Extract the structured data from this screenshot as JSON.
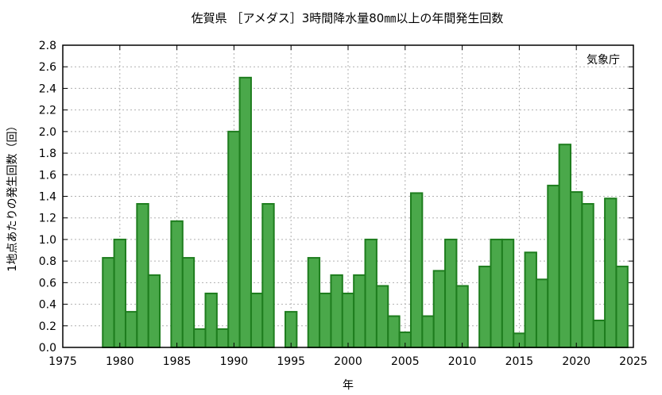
{
  "chart_data": {
    "type": "bar",
    "title": "佐賀県 ［アメダス］3時間降水量80㎜以上の年間発生回数",
    "xlabel": "年",
    "ylabel": "1地点あたりの発生回数（回）",
    "annotation": "気象庁",
    "xlim": [
      1975,
      2025
    ],
    "ylim": [
      0,
      2.8
    ],
    "x_ticks": [
      "1975",
      "1980",
      "1985",
      "1990",
      "1995",
      "2000",
      "2005",
      "2010",
      "2015",
      "2020",
      "2025"
    ],
    "y_ticks": [
      "0.0",
      "0.2",
      "0.4",
      "0.6",
      "0.8",
      "1.0",
      "1.2",
      "1.4",
      "1.6",
      "1.8",
      "2.0",
      "2.2",
      "2.4",
      "2.6",
      "2.8"
    ],
    "grid": true,
    "bar_fill": "#4aa84a",
    "bar_stroke": "#1e7d1e",
    "x": [
      1979,
      1980,
      1981,
      1982,
      1983,
      1984,
      1985,
      1986,
      1987,
      1988,
      1989,
      1990,
      1991,
      1992,
      1993,
      1994,
      1995,
      1996,
      1997,
      1998,
      1999,
      2000,
      2001,
      2002,
      2003,
      2004,
      2005,
      2006,
      2007,
      2008,
      2009,
      2010,
      2011,
      2012,
      2013,
      2014,
      2015,
      2016,
      2017,
      2018,
      2019,
      2020,
      2021,
      2022,
      2023,
      2024
    ],
    "values": [
      0.83,
      1.0,
      0.33,
      1.33,
      0.67,
      0,
      1.17,
      0.83,
      0.17,
      0.5,
      0.17,
      2.0,
      2.5,
      0.5,
      1.33,
      0,
      0.33,
      0,
      0.83,
      0.5,
      0.67,
      0.5,
      0.67,
      1.0,
      0.57,
      0.29,
      0.14,
      1.43,
      0.29,
      0.71,
      1.0,
      0.57,
      0,
      0.75,
      1.0,
      1.0,
      0.13,
      0.88,
      0.63,
      1.5,
      1.88,
      1.44,
      1.33,
      0.25,
      1.38,
      0.75
    ]
  }
}
